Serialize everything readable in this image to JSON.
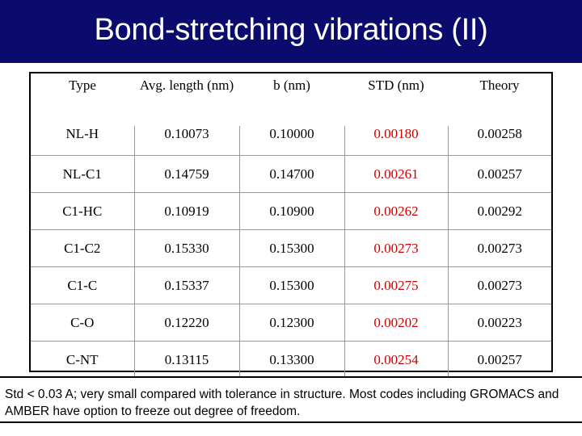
{
  "slide": {
    "title": "Bond-stretching vibrations (II)"
  },
  "table": {
    "headers": [
      "Type",
      "Avg. length (nm)",
      "b (nm)",
      "STD (nm)",
      "Theory"
    ],
    "rows": [
      [
        "NL-H",
        "0.10073",
        "0.10000",
        "0.00180",
        "0.00258"
      ],
      [
        "NL-C1",
        "0.14759",
        "0.14700",
        "0.00261",
        "0.00257"
      ],
      [
        "C1-HC",
        "0.10919",
        "0.10900",
        "0.00262",
        "0.00292"
      ],
      [
        "C1-C2",
        "0.15330",
        "0.15300",
        "0.00273",
        "0.00273"
      ],
      [
        "C1-C",
        "0.15337",
        "0.15300",
        "0.00275",
        "0.00273"
      ],
      [
        "C-O",
        "0.12220",
        "0.12300",
        "0.00202",
        "0.00223"
      ],
      [
        "C-NT",
        "0.13115",
        "0.13300",
        "0.00254",
        "0.00257"
      ]
    ]
  },
  "note": {
    "text": "Std < 0.03 A; very small compared with tolerance in structure.  Most codes including GROMACS and AMBER have option to freeze out degree of freedom."
  },
  "colors": {
    "title_bar": "#0b0b6e",
    "std_values": "#cc0000"
  }
}
